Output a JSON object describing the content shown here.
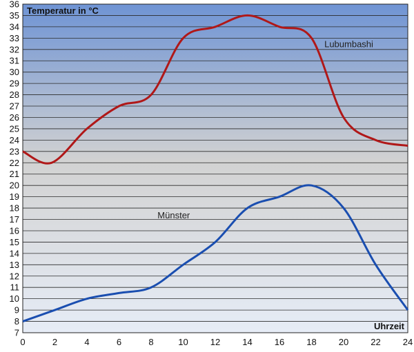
{
  "chart_data": {
    "type": "line",
    "ylabel": "Temperatur in °C",
    "xlabel": "Uhrzeit",
    "xlim": [
      0,
      24
    ],
    "ylim": [
      7,
      36
    ],
    "xticks": [
      "0",
      "2",
      "4",
      "6",
      "8",
      "10",
      "12",
      "14",
      "16",
      "18",
      "20",
      "22",
      "24"
    ],
    "yticks": [
      "7",
      "8",
      "9",
      "10",
      "11",
      "12",
      "13",
      "14",
      "15",
      "16",
      "17",
      "18",
      "19",
      "20",
      "21",
      "22",
      "23",
      "24",
      "25",
      "26",
      "27",
      "28",
      "29",
      "30",
      "31",
      "32",
      "33",
      "34",
      "35",
      "36"
    ],
    "grid": true,
    "background_gradient": {
      "top": "#6f94d4",
      "middle": "#d2d2d2",
      "bottom": "#e6ecf6"
    },
    "series": [
      {
        "name": "Lubumbashi",
        "color": "#b01818",
        "x": [
          0,
          1.8,
          4,
          6,
          8,
          10,
          12,
          14,
          16,
          18,
          20,
          22,
          24
        ],
        "values": [
          23,
          22,
          25,
          27,
          28,
          33,
          34,
          35,
          34,
          33,
          26,
          24,
          23.5
        ]
      },
      {
        "name": "Münster",
        "color": "#1a4eb0",
        "x": [
          0,
          2,
          4,
          6,
          8,
          10,
          12,
          14,
          16,
          18,
          20,
          22,
          24
        ],
        "values": [
          8,
          9,
          10,
          10.5,
          11,
          13,
          15,
          18,
          19,
          20,
          18,
          13,
          9
        ]
      }
    ]
  }
}
